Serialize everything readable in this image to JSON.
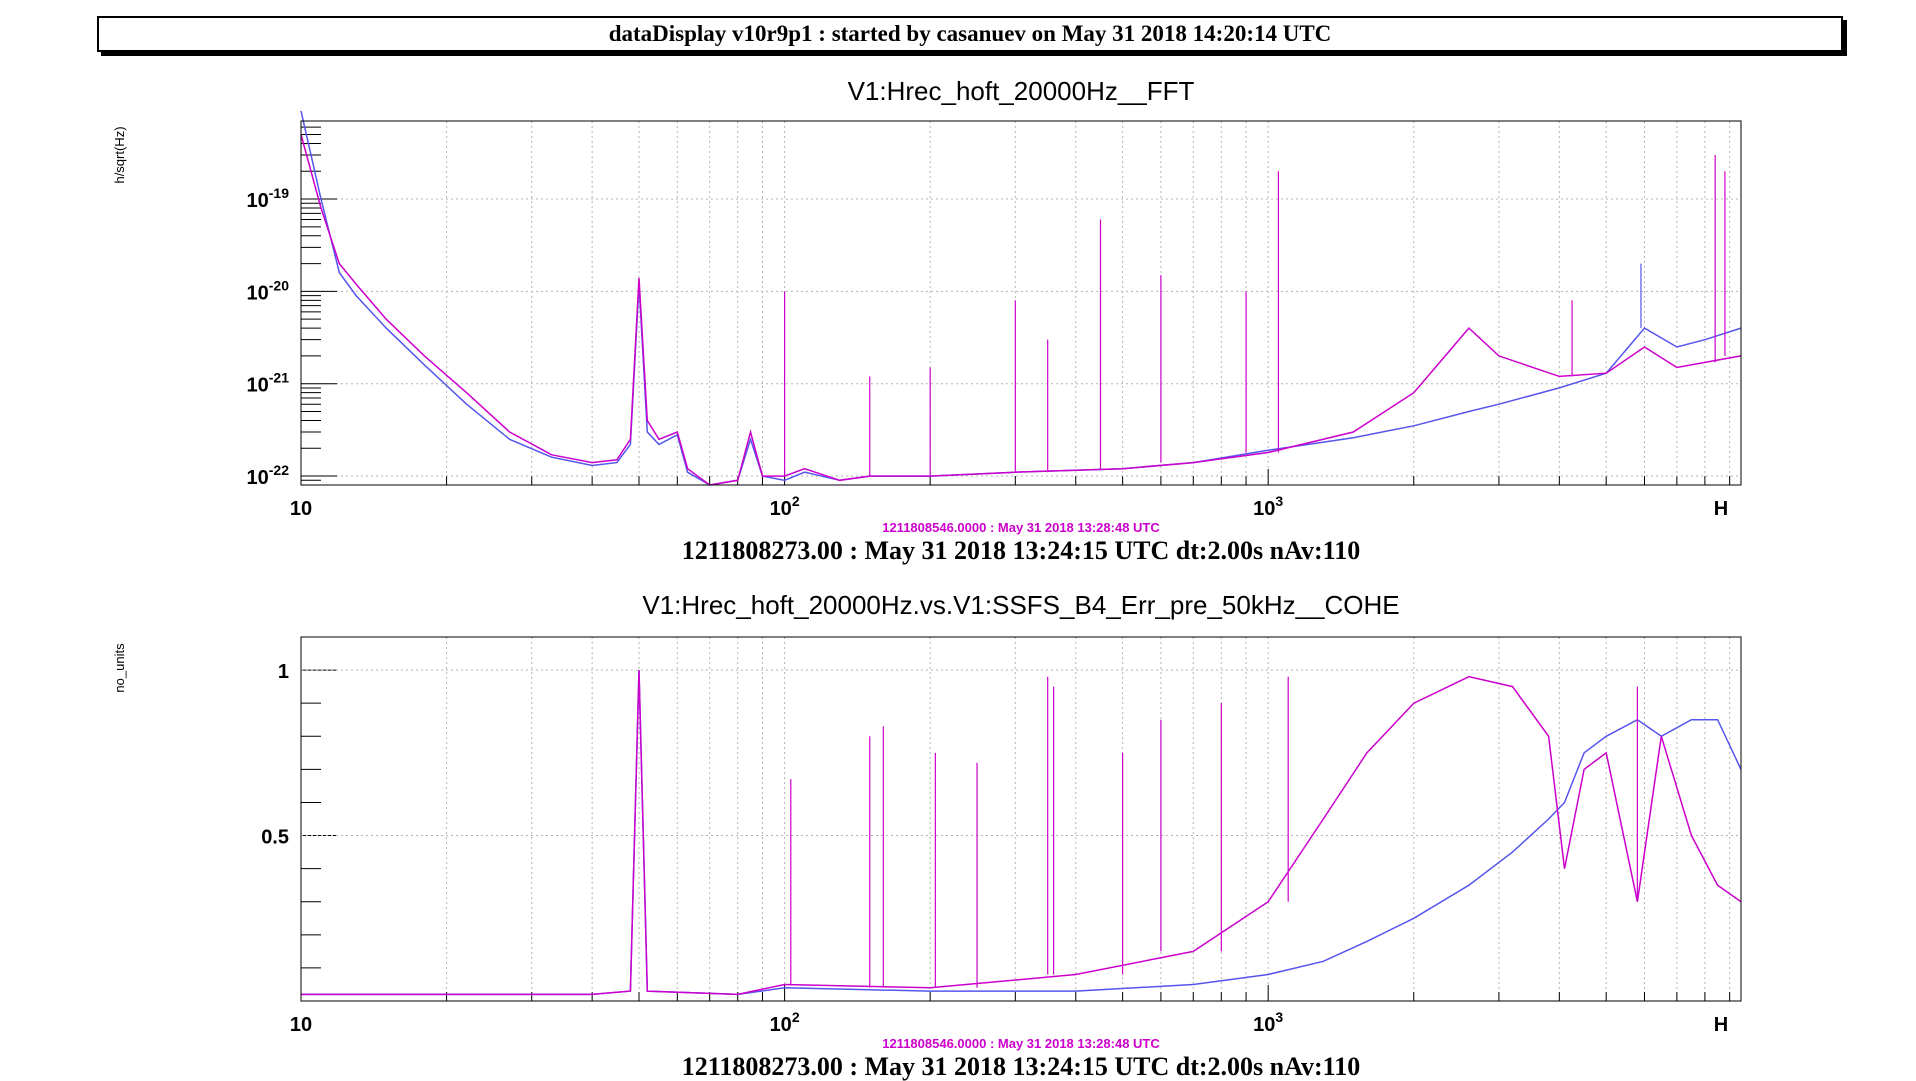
{
  "header": {
    "title": "dataDisplay v10r9p1 : started by casanuev on May 31 2018 14:20:14 UTC"
  },
  "colors": {
    "reference": "#cc00cc",
    "current": "#5555ee",
    "grid": "#b4b4b4",
    "axis": "#000000",
    "frame": "#000000"
  },
  "chart_data": [
    {
      "type": "line",
      "title": "V1:Hrec_hoft_20000Hz__FFT",
      "ylabel": "h/sqrt(Hz)",
      "xscale": "log",
      "yscale": "log",
      "xlim": [
        10,
        9500
      ],
      "ylim": [
        8e-23,
        7e-19
      ],
      "grid": true,
      "x_ticks": [
        {
          "base": "10",
          "exp": ""
        },
        {
          "base": "10",
          "exp": "2"
        },
        {
          "base": "10",
          "exp": "3"
        },
        {
          "base": "H",
          "exp": ""
        }
      ],
      "y_ticks": [
        {
          "base": "10",
          "exp": "-19"
        },
        {
          "base": "10",
          "exp": "-20"
        },
        {
          "base": "10",
          "exp": "-21"
        },
        {
          "base": "10",
          "exp": "-22"
        }
      ],
      "reference_label": "1211808546.0000 : May 31 2018 13:28:48 UTC",
      "footer": "1211808273.00 : May 31 2018 13:24:15 UTC dt:2.00s nAv:110",
      "series": [
        {
          "role": "reference",
          "x": [
            10,
            11,
            12,
            13,
            15,
            18,
            22,
            27,
            33,
            40,
            45,
            48,
            50,
            52,
            55,
            60,
            63,
            70,
            80,
            85,
            90,
            100,
            110,
            130,
            150,
            200,
            300,
            500,
            700,
            1000,
            1500,
            2000,
            2600,
            3000,
            4000,
            5000,
            6000,
            7000,
            8000,
            9500
          ],
          "y": [
            5e-19,
            8e-20,
            2e-20,
            1.2e-20,
            5e-21,
            2e-21,
            8e-22,
            3e-22,
            1.7e-22,
            1.4e-22,
            1.5e-22,
            2.5e-22,
            1.4e-20,
            4e-22,
            2.5e-22,
            3e-22,
            1.2e-22,
            8e-23,
            9e-23,
            3e-22,
            1e-22,
            1e-22,
            1.2e-22,
            9e-23,
            1e-22,
            1e-22,
            1.1e-22,
            1.2e-22,
            1.4e-22,
            1.8e-22,
            3e-22,
            8e-22,
            4e-21,
            2e-21,
            1.2e-21,
            1.3e-21,
            2.5e-21,
            1.5e-21,
            1.7e-21,
            2e-21
          ]
        },
        {
          "role": "current",
          "x": [
            10,
            11,
            12,
            13,
            15,
            18,
            22,
            27,
            33,
            40,
            45,
            48,
            50,
            52,
            55,
            60,
            63,
            70,
            80,
            85,
            90,
            100,
            110,
            130,
            150,
            200,
            300,
            500,
            700,
            1000,
            1500,
            2000,
            2600,
            3000,
            4000,
            5000,
            6000,
            7000,
            8000,
            9500
          ],
          "y": [
            9e-19,
            1e-19,
            1.6e-20,
            9e-21,
            4e-21,
            1.6e-21,
            6e-22,
            2.5e-22,
            1.6e-22,
            1.3e-22,
            1.4e-22,
            2.2e-22,
            1.2e-20,
            3e-22,
            2.2e-22,
            2.8e-22,
            1.1e-22,
            8e-23,
            9e-23,
            2.5e-22,
            1e-22,
            9e-23,
            1.1e-22,
            9e-23,
            1e-22,
            1e-22,
            1.1e-22,
            1.2e-22,
            1.4e-22,
            1.9e-22,
            2.6e-22,
            3.5e-22,
            5e-22,
            6e-22,
            9e-22,
            1.3e-21,
            4e-21,
            2.5e-21,
            3e-21,
            4e-21
          ]
        }
      ],
      "peaks": [
        {
          "x": 50,
          "y": 1.4e-20,
          "role": "reference"
        },
        {
          "x": 100,
          "y": 1e-20,
          "role": "reference"
        },
        {
          "x": 150,
          "y": 1.2e-21,
          "role": "reference"
        },
        {
          "x": 200,
          "y": 1.5e-21,
          "role": "reference"
        },
        {
          "x": 300,
          "y": 8e-21,
          "role": "reference"
        },
        {
          "x": 350,
          "y": 3e-21,
          "role": "reference"
        },
        {
          "x": 450,
          "y": 6e-20,
          "role": "reference"
        },
        {
          "x": 600,
          "y": 1.5e-20,
          "role": "reference"
        },
        {
          "x": 900,
          "y": 1e-20,
          "role": "reference"
        },
        {
          "x": 1050,
          "y": 2e-19,
          "role": "reference"
        },
        {
          "x": 4250,
          "y": 8e-21,
          "role": "reference"
        },
        {
          "x": 8400,
          "y": 3e-19,
          "role": "reference"
        },
        {
          "x": 8800,
          "y": 2e-19,
          "role": "reference"
        },
        {
          "x": 5900,
          "y": 2e-20,
          "role": "current"
        }
      ]
    },
    {
      "type": "line",
      "title": "V1:Hrec_hoft_20000Hz.vs.V1:SSFS_B4_Err_pre_50kHz__COHE",
      "ylabel": "no_units",
      "xscale": "log",
      "yscale": "linear",
      "xlim": [
        10,
        9500
      ],
      "ylim": [
        0,
        1.1
      ],
      "grid": true,
      "x_ticks": [
        {
          "base": "10",
          "exp": ""
        },
        {
          "base": "10",
          "exp": "2"
        },
        {
          "base": "10",
          "exp": "3"
        },
        {
          "base": "H",
          "exp": ""
        }
      ],
      "y_ticks": [
        {
          "label": "1",
          "value": 1
        },
        {
          "label": "0.5",
          "value": 0.5
        }
      ],
      "reference_label": "1211808546.0000 : May 31 2018 13:28:48 UTC",
      "footer": "1211808273.00 : May 31 2018 13:24:15 UTC dt:2.00s nAv:110",
      "series": [
        {
          "role": "reference",
          "x": [
            10,
            20,
            40,
            48,
            50,
            52,
            80,
            100,
            200,
            400,
            700,
            1000,
            1300,
            1600,
            2000,
            2600,
            3200,
            3800,
            4100,
            4500,
            5000,
            5800,
            6500,
            7500,
            8500,
            9500
          ],
          "y": [
            0.02,
            0.02,
            0.02,
            0.03,
            1.0,
            0.03,
            0.02,
            0.05,
            0.04,
            0.08,
            0.15,
            0.3,
            0.55,
            0.75,
            0.9,
            0.98,
            0.95,
            0.8,
            0.4,
            0.7,
            0.75,
            0.3,
            0.8,
            0.5,
            0.35,
            0.3
          ]
        },
        {
          "role": "current",
          "x": [
            10,
            20,
            40,
            48,
            50,
            52,
            80,
            100,
            200,
            400,
            700,
            1000,
            1300,
            1600,
            2000,
            2600,
            3200,
            3800,
            4100,
            4500,
            5000,
            5800,
            6500,
            7500,
            8500,
            9500
          ],
          "y": [
            0.02,
            0.02,
            0.02,
            0.03,
            1.0,
            0.03,
            0.02,
            0.04,
            0.03,
            0.03,
            0.05,
            0.08,
            0.12,
            0.18,
            0.25,
            0.35,
            0.45,
            0.55,
            0.6,
            0.75,
            0.8,
            0.85,
            0.8,
            0.85,
            0.85,
            0.7
          ]
        }
      ],
      "peaks": [
        {
          "x": 103,
          "y": 0.67,
          "role": "reference"
        },
        {
          "x": 150,
          "y": 0.8,
          "role": "reference"
        },
        {
          "x": 160,
          "y": 0.83,
          "role": "reference"
        },
        {
          "x": 205,
          "y": 0.75,
          "role": "reference"
        },
        {
          "x": 250,
          "y": 0.72,
          "role": "reference"
        },
        {
          "x": 350,
          "y": 0.98,
          "role": "reference"
        },
        {
          "x": 360,
          "y": 0.95,
          "role": "reference"
        },
        {
          "x": 500,
          "y": 0.75,
          "role": "reference"
        },
        {
          "x": 600,
          "y": 0.85,
          "role": "reference"
        },
        {
          "x": 800,
          "y": 0.9,
          "role": "reference"
        },
        {
          "x": 1100,
          "y": 0.98,
          "role": "reference"
        },
        {
          "x": 5800,
          "y": 0.95,
          "role": "reference"
        }
      ]
    }
  ]
}
